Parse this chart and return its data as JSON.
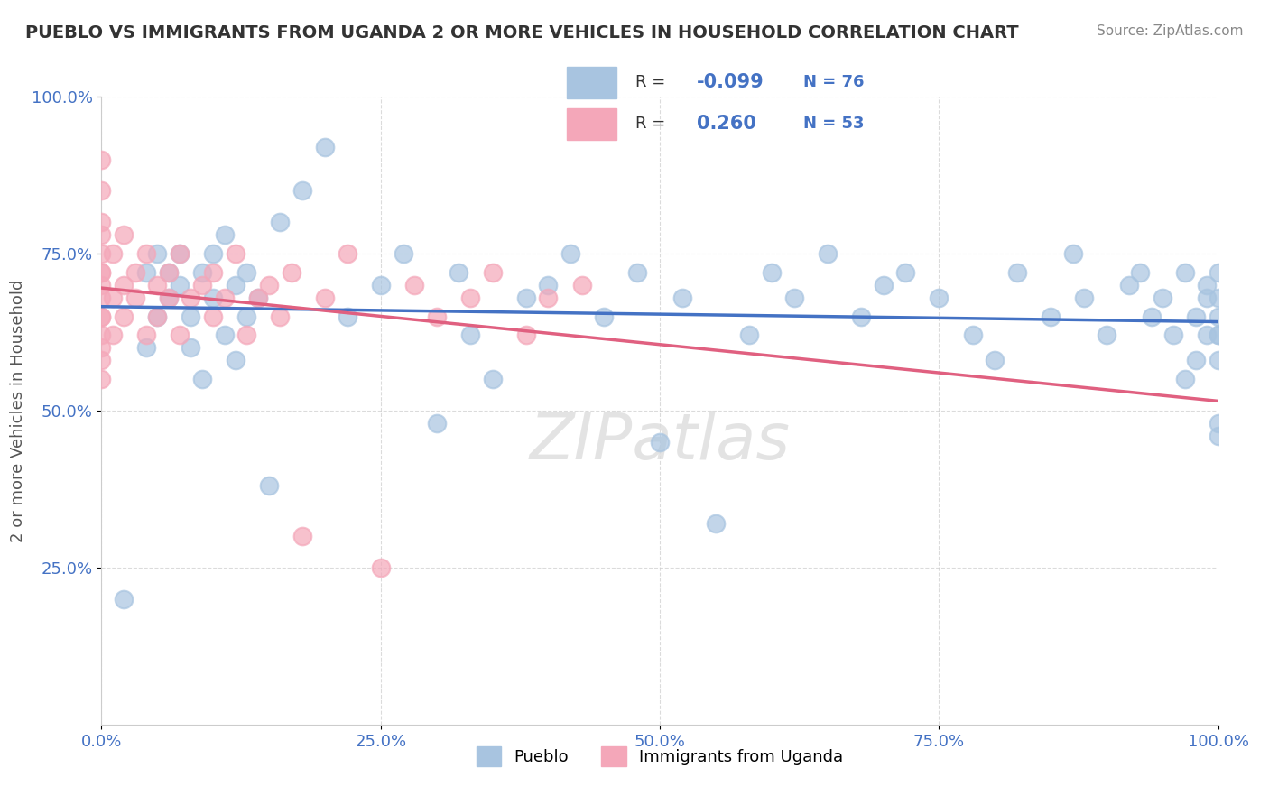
{
  "title": "PUEBLO VS IMMIGRANTS FROM UGANDA 2 OR MORE VEHICLES IN HOUSEHOLD CORRELATION CHART",
  "source": "Source: ZipAtlas.com",
  "xlabel": "",
  "ylabel": "2 or more Vehicles in Household",
  "legend_labels": [
    "Pueblo",
    "Immigrants from Uganda"
  ],
  "r_pueblo": -0.099,
  "n_pueblo": 76,
  "r_uganda": 0.26,
  "n_uganda": 53,
  "xlim": [
    0.0,
    1.0
  ],
  "ylim": [
    0.0,
    1.0
  ],
  "xtick_labels": [
    "0.0%",
    "25.0%",
    "50.0%",
    "75.0%",
    "100.0%"
  ],
  "xtick_vals": [
    0.0,
    0.25,
    0.5,
    0.75,
    1.0
  ],
  "ytick_labels": [
    "25.0%",
    "50.0%",
    "75.0%",
    "100.0%"
  ],
  "ytick_vals": [
    0.25,
    0.5,
    0.75,
    1.0
  ],
  "color_pueblo": "#a8c4e0",
  "color_uganda": "#f4a7b9",
  "trendline_pueblo": "#4472c4",
  "trendline_uganda": "#e06080",
  "background_color": "#ffffff",
  "watermark": "ZIPatlas",
  "pueblo_x": [
    0.02,
    0.04,
    0.04,
    0.05,
    0.05,
    0.06,
    0.06,
    0.07,
    0.07,
    0.08,
    0.08,
    0.09,
    0.09,
    0.1,
    0.1,
    0.11,
    0.11,
    0.12,
    0.12,
    0.13,
    0.13,
    0.14,
    0.15,
    0.16,
    0.18,
    0.2,
    0.22,
    0.25,
    0.27,
    0.3,
    0.32,
    0.33,
    0.35,
    0.38,
    0.4,
    0.42,
    0.45,
    0.48,
    0.5,
    0.52,
    0.55,
    0.58,
    0.6,
    0.62,
    0.65,
    0.68,
    0.7,
    0.72,
    0.75,
    0.78,
    0.8,
    0.82,
    0.85,
    0.87,
    0.88,
    0.9,
    0.92,
    0.93,
    0.94,
    0.95,
    0.96,
    0.97,
    0.97,
    0.98,
    0.98,
    0.99,
    0.99,
    0.99,
    1.0,
    1.0,
    1.0,
    1.0,
    1.0,
    1.0,
    1.0,
    1.0
  ],
  "pueblo_y": [
    0.2,
    0.6,
    0.72,
    0.65,
    0.75,
    0.68,
    0.72,
    0.7,
    0.75,
    0.6,
    0.65,
    0.55,
    0.72,
    0.68,
    0.75,
    0.62,
    0.78,
    0.7,
    0.58,
    0.65,
    0.72,
    0.68,
    0.38,
    0.8,
    0.85,
    0.92,
    0.65,
    0.7,
    0.75,
    0.48,
    0.72,
    0.62,
    0.55,
    0.68,
    0.7,
    0.75,
    0.65,
    0.72,
    0.45,
    0.68,
    0.32,
    0.62,
    0.72,
    0.68,
    0.75,
    0.65,
    0.7,
    0.72,
    0.68,
    0.62,
    0.58,
    0.72,
    0.65,
    0.75,
    0.68,
    0.62,
    0.7,
    0.72,
    0.65,
    0.68,
    0.62,
    0.55,
    0.72,
    0.65,
    0.58,
    0.62,
    0.7,
    0.68,
    0.48,
    0.62,
    0.65,
    0.72,
    0.58,
    0.68,
    0.62,
    0.46
  ],
  "uganda_x": [
    0.0,
    0.0,
    0.0,
    0.0,
    0.0,
    0.0,
    0.0,
    0.0,
    0.0,
    0.0,
    0.0,
    0.0,
    0.0,
    0.0,
    0.0,
    0.01,
    0.01,
    0.01,
    0.02,
    0.02,
    0.02,
    0.03,
    0.03,
    0.04,
    0.04,
    0.05,
    0.05,
    0.06,
    0.06,
    0.07,
    0.07,
    0.08,
    0.09,
    0.1,
    0.1,
    0.11,
    0.12,
    0.13,
    0.14,
    0.15,
    0.16,
    0.17,
    0.18,
    0.2,
    0.22,
    0.25,
    0.28,
    0.3,
    0.33,
    0.35,
    0.38,
    0.4,
    0.43
  ],
  "uganda_y": [
    0.6,
    0.65,
    0.68,
    0.72,
    0.75,
    0.78,
    0.55,
    0.62,
    0.7,
    0.8,
    0.85,
    0.9,
    0.58,
    0.65,
    0.72,
    0.68,
    0.75,
    0.62,
    0.7,
    0.65,
    0.78,
    0.72,
    0.68,
    0.75,
    0.62,
    0.7,
    0.65,
    0.68,
    0.72,
    0.75,
    0.62,
    0.68,
    0.7,
    0.65,
    0.72,
    0.68,
    0.75,
    0.62,
    0.68,
    0.7,
    0.65,
    0.72,
    0.3,
    0.68,
    0.75,
    0.25,
    0.7,
    0.65,
    0.68,
    0.72,
    0.62,
    0.68,
    0.7
  ]
}
